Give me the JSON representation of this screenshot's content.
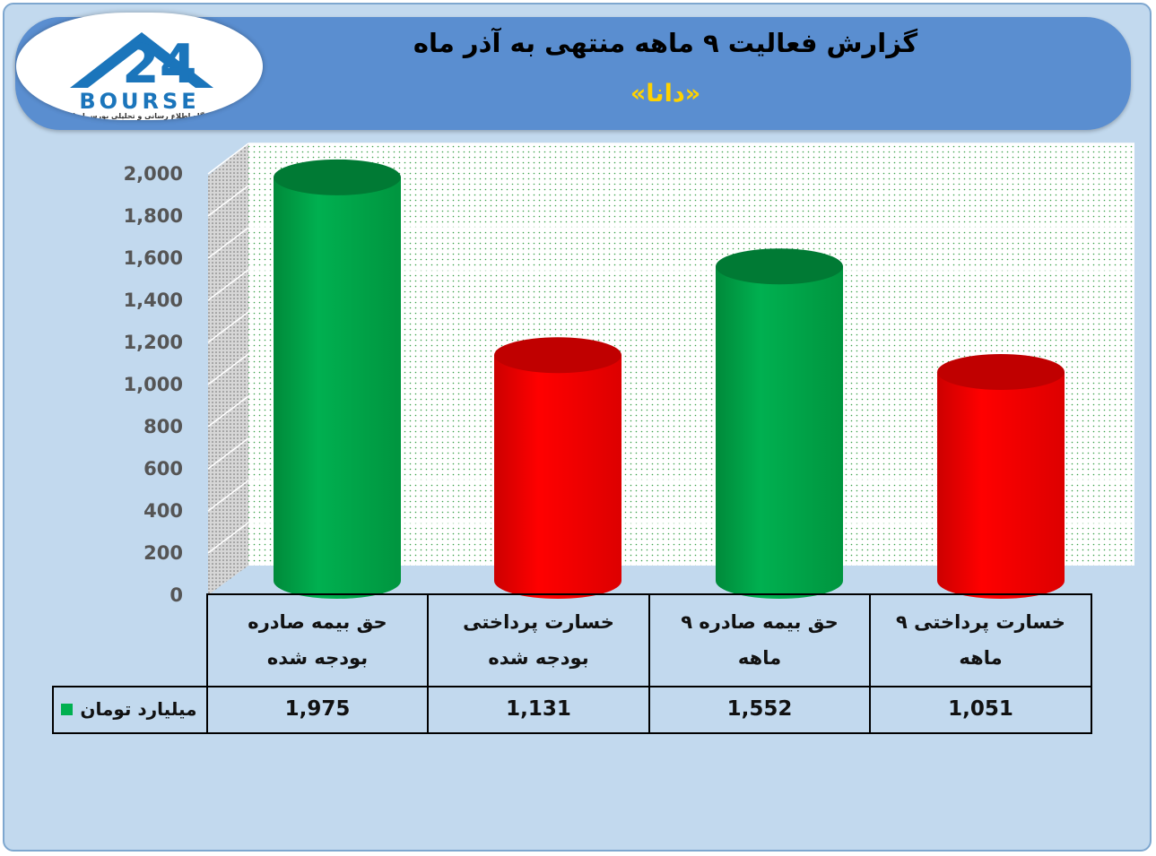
{
  "header": {
    "title": "گزارش فعالیت ۹ ماهه منتهی به آذر ماه",
    "subtitle": "«دانا»"
  },
  "logo": {
    "icon": "bourse24-logo",
    "word": "BOURSE",
    "tagline": "پایگاه اطلاع رسانی و تحلیلی بورس ایران"
  },
  "chart_data": {
    "type": "bar",
    "categories": [
      "حق بیمه صادره بودجه شده",
      "خسارت پرداختی بودجه شده",
      "حق بیمه صادره ۹ ماهه",
      "خسارت پرداختی ۹ ماهه"
    ],
    "series": [
      {
        "name": "میلیارد تومان",
        "values": [
          1975,
          1131,
          1552,
          1051
        ]
      }
    ],
    "value_labels": [
      "1,975",
      "1,131",
      "1,552",
      "1,051"
    ],
    "bar_colors": [
      "#00b050",
      "#ff0000",
      "#00b050",
      "#ff0000"
    ],
    "legend_color": "#00b050",
    "ylim": [
      0,
      2000
    ],
    "y_ticks": [
      "0",
      "200",
      "400",
      "600",
      "800",
      "1,000",
      "1,200",
      "1,400",
      "1,600",
      "1,800",
      "2,000"
    ],
    "grid": true,
    "legend": "data-table"
  }
}
